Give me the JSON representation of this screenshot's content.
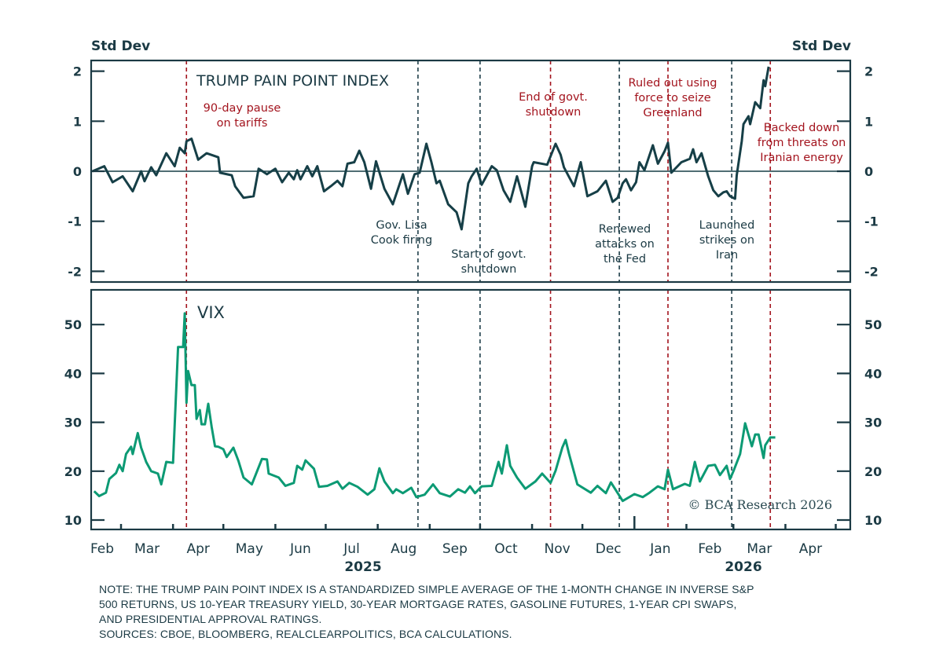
{
  "colors": {
    "index_line": "#163f47",
    "vix_line": "#0c9a74",
    "red_event": "#a3141e",
    "dark_event": "#1f3f4a",
    "text": "#1b3a44"
  },
  "chart_data": [
    {
      "type": "line",
      "title": "TRUMP PAIN POINT INDEX",
      "ylabel_left": "Std Dev",
      "ylabel_right": "Std Dev",
      "ylim": [
        -2.2,
        2.2
      ],
      "yticks": [
        "2",
        "1",
        "0",
        "-1",
        "-2"
      ],
      "ytick_values": [
        2,
        1,
        0,
        -1,
        -2
      ],
      "zero_line": true,
      "series": [
        {
          "x": [
            "2025-02-12",
            "2025-02-19",
            "2025-02-24",
            "2025-03-02",
            "2025-03-08",
            "2025-03-13",
            "2025-03-15",
            "2025-03-19",
            "2025-03-22",
            "2025-03-28",
            "2025-04-02",
            "2025-04-05",
            "2025-04-08",
            "2025-04-09",
            "2025-04-12",
            "2025-04-16",
            "2025-04-21",
            "2025-04-28",
            "2025-04-29",
            "2025-05-06",
            "2025-05-08",
            "2025-05-13",
            "2025-05-19",
            "2025-05-22",
            "2025-05-27",
            "2025-06-01",
            "2025-06-05",
            "2025-06-09",
            "2025-06-12",
            "2025-06-14",
            "2025-06-16",
            "2025-06-20",
            "2025-06-23",
            "2025-06-26",
            "2025-06-30",
            "2025-07-04",
            "2025-07-08",
            "2025-07-11",
            "2025-07-14",
            "2025-07-18",
            "2025-07-21",
            "2025-07-24",
            "2025-07-28",
            "2025-07-31",
            "2025-08-05",
            "2025-08-10",
            "2025-08-16",
            "2025-08-19",
            "2025-08-23",
            "2025-08-26",
            "2025-08-30",
            "2025-09-02",
            "2025-09-05",
            "2025-09-07",
            "2025-09-12",
            "2025-09-17",
            "2025-09-20",
            "2025-09-24",
            "2025-09-26",
            "2025-09-29",
            "2025-10-02",
            "2025-10-08",
            "2025-10-11",
            "2025-10-15",
            "2025-10-19",
            "2025-10-23",
            "2025-10-28",
            "2025-11-01",
            "2025-11-02",
            "2025-11-10",
            "2025-11-15",
            "2025-11-18",
            "2025-11-20",
            "2025-11-26",
            "2025-11-30",
            "2025-12-04",
            "2025-12-10",
            "2025-12-15",
            "2025-12-19",
            "2025-12-22",
            "2025-12-25",
            "2025-12-27",
            "2025-12-30",
            "2026-01-02",
            "2026-01-04",
            "2026-01-07",
            "2026-01-12",
            "2026-01-15",
            "2026-01-19",
            "2026-01-21",
            "2026-01-23",
            "2026-01-29",
            "2026-02-03",
            "2026-02-05",
            "2026-02-07",
            "2026-02-10",
            "2026-02-14",
            "2026-02-17",
            "2026-02-20",
            "2026-02-23",
            "2026-02-25",
            "2026-02-27",
            "2026-03-02",
            "2026-03-03",
            "2026-03-06",
            "2026-03-07",
            "2026-03-10",
            "2026-03-11",
            "2026-03-14",
            "2026-03-17",
            "2026-03-19",
            "2026-03-20",
            "2026-03-22"
          ],
          "values": [
            0.0,
            0.1,
            -0.22,
            -0.1,
            -0.4,
            0.0,
            -0.2,
            0.08,
            -0.08,
            0.36,
            0.1,
            0.47,
            0.36,
            0.6,
            0.65,
            0.23,
            0.36,
            0.28,
            -0.03,
            -0.08,
            -0.3,
            -0.53,
            -0.5,
            0.05,
            -0.06,
            0.05,
            -0.22,
            -0.03,
            -0.16,
            0.02,
            -0.16,
            0.1,
            -0.1,
            0.1,
            -0.4,
            -0.3,
            -0.19,
            -0.3,
            0.15,
            0.18,
            0.41,
            0.18,
            -0.35,
            0.2,
            -0.35,
            -0.66,
            -0.06,
            -0.45,
            -0.06,
            -0.03,
            0.55,
            0.18,
            -0.24,
            -0.19,
            -0.66,
            -0.82,
            -1.16,
            -0.24,
            -0.1,
            0.05,
            -0.27,
            0.1,
            0.02,
            -0.38,
            -0.61,
            -0.1,
            -0.71,
            0.1,
            0.18,
            0.13,
            0.55,
            0.33,
            0.08,
            -0.3,
            0.18,
            -0.5,
            -0.4,
            -0.19,
            -0.61,
            -0.53,
            -0.24,
            -0.16,
            -0.38,
            -0.22,
            0.18,
            0.02,
            0.52,
            0.15,
            0.4,
            0.57,
            -0.03,
            0.18,
            0.25,
            0.44,
            0.18,
            0.36,
            -0.1,
            -0.38,
            -0.5,
            -0.42,
            -0.4,
            -0.5,
            -0.55,
            -0.08,
            0.6,
            0.94,
            1.1,
            0.94,
            1.38,
            1.26,
            1.82,
            1.7,
            2.09
          ]
        }
      ]
    },
    {
      "type": "line",
      "title": "VIX",
      "ylim": [
        8,
        57
      ],
      "yticks": [
        "50",
        "40",
        "30",
        "20",
        "10"
      ],
      "ytick_values": [
        50,
        40,
        30,
        20,
        10
      ],
      "series": [
        {
          "x": [
            "2025-02-13",
            "2025-02-16",
            "2025-02-20",
            "2025-02-22",
            "2025-02-26",
            "2025-02-28",
            "2025-03-02",
            "2025-03-04",
            "2025-03-07",
            "2025-03-08",
            "2025-03-11",
            "2025-03-13",
            "2025-03-16",
            "2025-03-19",
            "2025-03-23",
            "2025-03-25",
            "2025-03-28",
            "2025-04-01",
            "2025-04-04",
            "2025-04-07",
            "2025-04-08",
            "2025-04-09",
            "2025-04-10",
            "2025-04-12",
            "2025-04-14",
            "2025-04-15",
            "2025-04-17",
            "2025-04-18",
            "2025-04-20",
            "2025-04-22",
            "2025-04-24",
            "2025-04-26",
            "2025-04-28",
            "2025-05-01",
            "2025-05-03",
            "2025-05-07",
            "2025-05-10",
            "2025-05-13",
            "2025-05-18",
            "2025-05-24",
            "2025-05-27",
            "2025-05-28",
            "2025-06-03",
            "2025-06-07",
            "2025-06-12",
            "2025-06-14",
            "2025-06-17",
            "2025-06-19",
            "2025-06-24",
            "2025-06-27",
            "2025-07-02",
            "2025-07-08",
            "2025-07-11",
            "2025-07-15",
            "2025-07-20",
            "2025-07-26",
            "2025-07-30",
            "2025-08-02",
            "2025-08-05",
            "2025-08-10",
            "2025-08-12",
            "2025-08-16",
            "2025-08-21",
            "2025-08-24",
            "2025-08-29",
            "2025-09-03",
            "2025-09-07",
            "2025-09-13",
            "2025-09-18",
            "2025-09-22",
            "2025-09-25",
            "2025-09-28",
            "2025-10-02",
            "2025-10-08",
            "2025-10-12",
            "2025-10-14",
            "2025-10-17",
            "2025-10-19",
            "2025-10-23",
            "2025-10-28",
            "2025-11-03",
            "2025-11-07",
            "2025-11-12",
            "2025-11-15",
            "2025-11-19",
            "2025-11-21",
            "2025-11-23",
            "2025-11-28",
            "2025-12-06",
            "2025-12-10",
            "2025-12-15",
            "2025-12-18",
            "2025-12-25",
            "2026-01-01",
            "2026-01-06",
            "2026-01-10",
            "2026-01-15",
            "2026-01-19",
            "2026-01-21",
            "2026-01-24",
            "2026-01-31",
            "2026-02-03",
            "2026-02-06",
            "2026-02-09",
            "2026-02-14",
            "2026-02-18",
            "2026-02-21",
            "2026-02-25",
            "2026-02-27",
            "2026-03-01",
            "2026-03-05",
            "2026-03-08",
            "2026-03-12",
            "2026-03-14",
            "2026-03-16",
            "2026-03-19",
            "2026-03-20",
            "2026-03-23",
            "2026-03-26"
          ],
          "values": [
            15.9,
            14.9,
            15.6,
            18.4,
            19.6,
            21.3,
            20.0,
            23.5,
            25.0,
            23.5,
            27.8,
            24.8,
            21.9,
            20.0,
            19.5,
            17.3,
            21.9,
            21.7,
            45.4,
            45.4,
            52.3,
            34.0,
            40.5,
            37.6,
            37.6,
            30.7,
            32.5,
            29.6,
            29.6,
            33.8,
            29.1,
            25.1,
            25.0,
            24.5,
            22.9,
            24.8,
            22.1,
            18.7,
            17.3,
            22.5,
            22.4,
            19.5,
            18.7,
            17.0,
            17.6,
            21.1,
            20.3,
            22.2,
            20.5,
            16.8,
            17.0,
            17.9,
            16.4,
            17.6,
            16.8,
            15.2,
            16.3,
            20.6,
            17.9,
            15.5,
            16.3,
            15.5,
            16.6,
            14.7,
            15.2,
            17.3,
            15.5,
            14.8,
            16.3,
            15.6,
            16.9,
            15.5,
            16.9,
            17.0,
            21.9,
            19.5,
            25.3,
            21.1,
            18.7,
            16.4,
            17.9,
            19.5,
            17.6,
            20.1,
            24.8,
            26.4,
            23.6,
            17.3,
            15.6,
            17.0,
            15.5,
            17.7,
            13.9,
            15.3,
            14.7,
            15.6,
            16.9,
            16.3,
            20.3,
            16.3,
            17.4,
            17.0,
            21.9,
            17.9,
            21.1,
            21.3,
            19.2,
            21.1,
            18.4,
            20.0,
            23.5,
            29.8,
            25.1,
            27.5,
            27.5,
            22.7,
            25.3,
            26.9,
            26.9
          ]
        }
      ]
    }
  ],
  "x_axis": {
    "months": [
      "Feb",
      "Mar",
      "Apr",
      "May",
      "Jun",
      "Jul",
      "Aug",
      "Sep",
      "Oct",
      "Nov",
      "Dec",
      "Jan",
      "Feb",
      "Mar",
      "Apr"
    ],
    "years": [
      "2025",
      "2026"
    ],
    "range": [
      "2025-02-10",
      "2026-05-08"
    ]
  },
  "events": [
    {
      "date": "2025-04-09",
      "color": "red",
      "lines": [
        "90-day pause",
        "on tariffs"
      ]
    },
    {
      "date": "2025-08-25",
      "color": "dark",
      "lines": [
        "Gov. Lisa",
        "Cook firing"
      ]
    },
    {
      "date": "2025-10-01",
      "color": "dark",
      "lines": [
        "Start of govt.",
        "shutdown"
      ]
    },
    {
      "date": "2025-11-12",
      "color": "red",
      "lines": [
        "End of govt.",
        "shutdown"
      ]
    },
    {
      "date": "2025-12-23",
      "color": "dark",
      "lines": [
        "Renewed",
        "attacks on",
        "the Fed"
      ]
    },
    {
      "date": "2026-01-21",
      "color": "red",
      "lines": [
        "Ruled out using",
        "force to seize",
        "Greenland"
      ]
    },
    {
      "date": "2026-02-28",
      "color": "dark",
      "lines": [
        "Launched",
        "strikes on",
        "Iran"
      ]
    },
    {
      "date": "2026-03-23",
      "color": "red",
      "lines": [
        "Backed down",
        "from threats on",
        "Iranian energy"
      ]
    }
  ],
  "copyright": "© BCA Research 2026",
  "note": [
    "NOTE: THE TRUMP PAIN POINT INDEX IS A STANDARDIZED SIMPLE AVERAGE OF THE 1-MONTH CHANGE IN INVERSE S&P",
    "500 RETURNS, US 10-YEAR TREASURY YIELD, 30-YEAR MORTGAGE RATES, GASOLINE FUTURES, 1-YEAR CPI SWAPS,",
    "AND PRESIDENTIAL APPROVAL RATINGS.",
    "SOURCES: CBOE, BLOOMBERG, REALCLEARPOLITICS, BCA CALCULATIONS."
  ]
}
